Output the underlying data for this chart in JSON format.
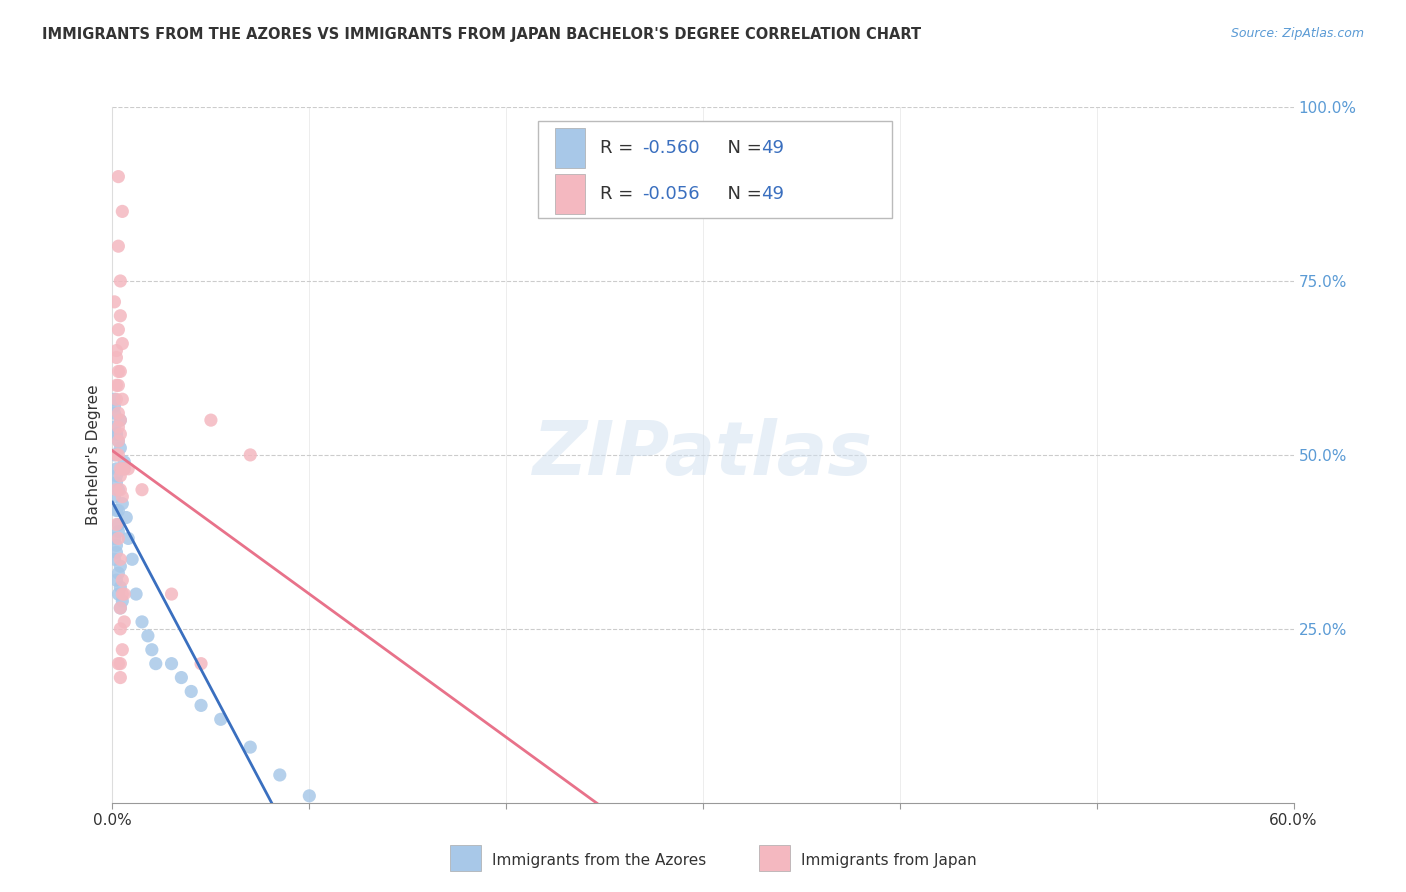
{
  "title": "IMMIGRANTS FROM THE AZORES VS IMMIGRANTS FROM JAPAN BACHELOR'S DEGREE CORRELATION CHART",
  "source": "Source: ZipAtlas.com",
  "ylabel": "Bachelor's Degree",
  "legend_entry1_r": "R = -0.560",
  "legend_entry1_n": "N = 49",
  "legend_entry2_r": "R = -0.056",
  "legend_entry2_n": "N = 49",
  "legend_label1": "Immigrants from the Azores",
  "legend_label2": "Immigrants from Japan",
  "watermark": "ZIPatlas",
  "azores_color": "#a8c8e8",
  "japan_color": "#f4b8c0",
  "azores_line_color": "#3a6fbf",
  "japan_line_color": "#e8728a",
  "background_color": "#ffffff",
  "grid_color": "#cccccc",
  "right_tick_color": "#5b9bd5",
  "text_color": "#333333",
  "legend_text_color": "#3a6fbf",
  "azores_x": [
    0.2,
    0.4,
    0.6,
    0.2,
    0.3,
    0.5,
    0.7,
    0.3,
    0.4,
    0.1,
    0.2,
    0.1,
    0.3,
    0.4,
    0.2,
    0.1,
    0.5,
    0.3,
    0.2,
    0.1,
    0.1,
    0.2,
    0.3,
    0.1,
    0.2,
    0.4,
    0.2,
    0.1,
    0.3,
    0.4,
    1.5,
    1.8,
    2.0,
    2.2,
    0.6,
    0.8,
    1.0,
    1.2,
    0.1,
    0.2,
    3.0,
    3.5,
    4.0,
    4.5,
    5.5,
    7.0,
    8.5,
    10.0,
    0.3
  ],
  "azores_y": [
    53.0,
    51.0,
    49.0,
    47.0,
    45.0,
    43.0,
    41.0,
    39.0,
    55.0,
    57.0,
    37.0,
    35.0,
    33.0,
    31.0,
    48.0,
    50.0,
    29.0,
    52.0,
    46.0,
    54.0,
    44.0,
    42.0,
    40.0,
    38.0,
    36.0,
    34.0,
    32.0,
    56.0,
    30.0,
    28.0,
    26.0,
    24.0,
    22.0,
    20.0,
    48.0,
    38.0,
    35.0,
    30.0,
    58.0,
    53.0,
    20.0,
    18.0,
    16.0,
    14.0,
    12.0,
    8.0,
    4.0,
    1.0,
    42.0
  ],
  "japan_x": [
    0.2,
    0.3,
    0.1,
    0.4,
    0.2,
    0.3,
    0.4,
    0.5,
    0.3,
    0.4,
    0.2,
    0.3,
    0.2,
    0.3,
    0.4,
    0.5,
    0.4,
    0.3,
    0.2,
    0.4,
    0.5,
    0.6,
    0.3,
    0.2,
    0.4,
    0.5,
    0.6,
    0.4,
    0.5,
    0.6,
    0.4,
    0.3,
    0.2,
    0.5,
    0.4,
    0.3,
    0.5,
    0.4,
    5.0,
    4.5,
    7.0,
    1.5,
    3.0,
    0.8,
    0.4,
    0.3,
    0.5,
    0.3,
    0.4
  ],
  "japan_y": [
    65.0,
    68.0,
    72.0,
    62.0,
    58.0,
    80.0,
    75.0,
    85.0,
    60.0,
    55.0,
    50.0,
    52.0,
    64.0,
    56.0,
    70.0,
    66.0,
    48.0,
    54.0,
    45.0,
    53.0,
    58.0,
    48.0,
    50.0,
    60.0,
    45.0,
    44.0,
    30.0,
    28.0,
    32.0,
    26.0,
    35.0,
    38.0,
    40.0,
    30.0,
    25.0,
    20.0,
    22.0,
    18.0,
    55.0,
    20.0,
    50.0,
    45.0,
    30.0,
    48.0,
    47.0,
    62.0,
    48.0,
    90.0,
    20.0
  ]
}
